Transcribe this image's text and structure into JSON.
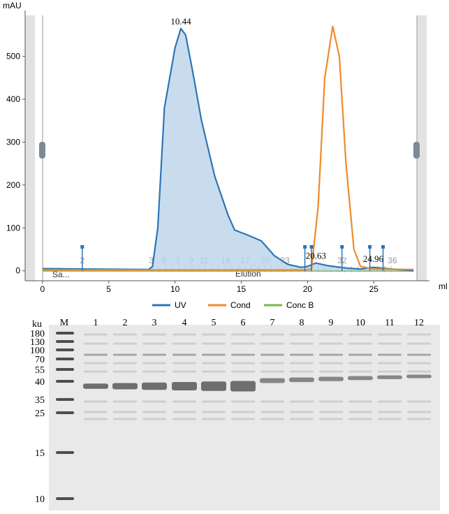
{
  "chart_data": {
    "type": "line",
    "x_label": "ml",
    "y_label": "mAU",
    "xlim": [
      -1.1,
      29.2
    ],
    "ylim": [
      -20,
      607
    ],
    "xticks": [
      0,
      5,
      10,
      15,
      20,
      25
    ],
    "yticks": [
      0,
      100,
      200,
      300,
      400,
      500
    ],
    "series": [
      {
        "name": "UV",
        "color": "#2e75b6",
        "fill": "#bcd3ea",
        "x": [
          0,
          8,
          8.3,
          8.7,
          9.2,
          9.6,
          10,
          10.44,
          10.8,
          11.3,
          12,
          13,
          14,
          14.5,
          15.5,
          16.5,
          17.5,
          18.5,
          19.5,
          20,
          20.63,
          21.5,
          23,
          24,
          24.96,
          26,
          28
        ],
        "values": [
          5,
          3,
          10,
          100,
          380,
          450,
          520,
          565,
          550,
          470,
          350,
          220,
          130,
          95,
          83,
          70,
          35,
          15,
          8,
          10,
          18,
          12,
          6,
          4,
          8,
          5,
          0
        ]
      },
      {
        "name": "Cond",
        "color": "#f08a2a",
        "x": [
          0,
          20,
          20.3,
          20.8,
          21.3,
          21.9,
          22.4,
          22.9,
          23.5,
          24,
          25,
          28
        ],
        "values": [
          2,
          2,
          5,
          150,
          450,
          570,
          500,
          250,
          50,
          10,
          4,
          3
        ]
      },
      {
        "name": "Conc B",
        "color": "#7ab648",
        "x": [
          0,
          28
        ],
        "values": [
          0,
          0
        ]
      }
    ],
    "peaks": [
      10.44,
      20.63,
      24.96
    ],
    "injections": [
      3,
      19.8,
      20.3,
      22.6,
      24.7,
      25.7
    ],
    "fractions": [
      2,
      3,
      5,
      7,
      9,
      11,
      14,
      17,
      20,
      23,
      32,
      36
    ],
    "fraction_x": [
      3,
      8.2,
      9.2,
      10.2,
      11.2,
      12.2,
      13.8,
      15.3,
      16.8,
      18.3,
      22.6,
      26.4
    ],
    "phase_labels": [
      "Sa...",
      "Elution"
    ]
  },
  "gel": {
    "unit": "ku",
    "lanes": [
      "M",
      "1",
      "2",
      "3",
      "4",
      "5",
      "6",
      "7",
      "8",
      "9",
      "10",
      "11",
      "12"
    ],
    "ladder": [
      180,
      130,
      100,
      70,
      55,
      40,
      35,
      25,
      15,
      10
    ]
  }
}
